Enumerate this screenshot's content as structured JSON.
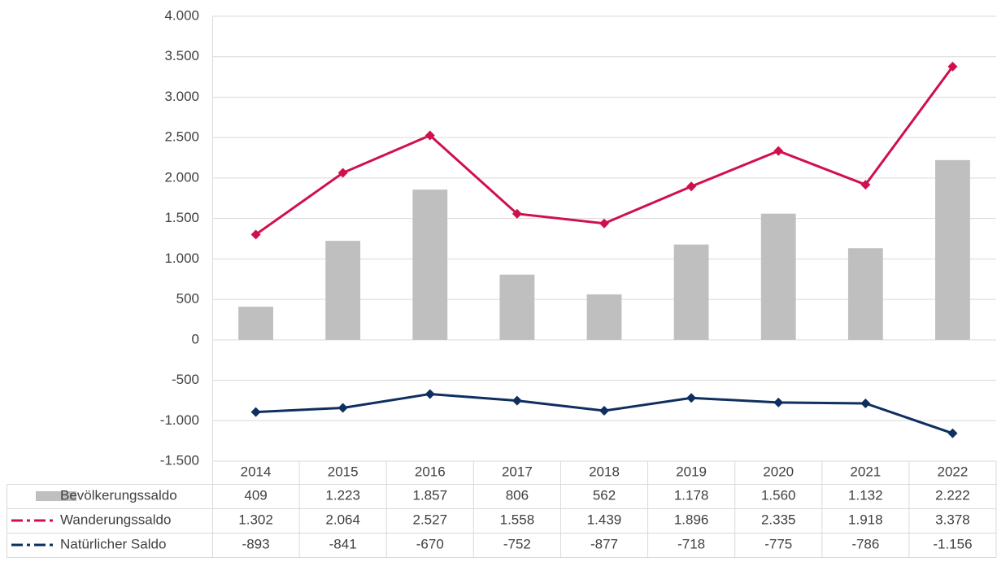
{
  "chart_data": {
    "type": "bar",
    "categories": [
      "2014",
      "2015",
      "2016",
      "2017",
      "2018",
      "2019",
      "2020",
      "2021",
      "2022"
    ],
    "ylim": [
      -1500,
      4000
    ],
    "yticks": [
      {
        "value": -1500,
        "label": "-1.500"
      },
      {
        "value": -1000,
        "label": "-1.000"
      },
      -500,
      0,
      500,
      {
        "value": 1000,
        "label": "1.000"
      },
      {
        "value": 1500,
        "label": "1.500"
      },
      {
        "value": 2000,
        "label": "2.000"
      },
      {
        "value": 2500,
        "label": "2.500"
      },
      {
        "value": 3000,
        "label": "3.000"
      },
      {
        "value": 3500,
        "label": "3.500"
      },
      {
        "value": 4000,
        "label": "4.000"
      }
    ],
    "grid": true,
    "series": [
      {
        "name": "Bevölkerungssaldo",
        "type": "bar",
        "color": "#bfbfbf",
        "values": [
          409,
          1223,
          1857,
          806,
          562,
          1178,
          1560,
          1132,
          2222
        ],
        "value_labels": [
          "409",
          "1.223",
          "1.857",
          "806",
          "562",
          "1.178",
          "1.560",
          "1.132",
          "2.222"
        ]
      },
      {
        "name": "Wanderungssaldo",
        "type": "line",
        "color": "#d0104c",
        "values": [
          1302,
          2064,
          2527,
          1558,
          1439,
          1896,
          2335,
          1918,
          3378
        ],
        "value_labels": [
          "1.302",
          "2.064",
          "2.527",
          "1.558",
          "1.439",
          "1.896",
          "2.335",
          "1.918",
          "3.378"
        ]
      },
      {
        "name": "Natürlicher Saldo",
        "type": "line",
        "color": "#0e2f5f",
        "values": [
          -893,
          -841,
          -670,
          -752,
          -877,
          -718,
          -775,
          -786,
          -1156
        ],
        "value_labels": [
          "-893",
          "-841",
          "-670",
          "-752",
          "-877",
          "-718",
          "-775",
          "-786",
          "-1.156"
        ]
      }
    ]
  }
}
